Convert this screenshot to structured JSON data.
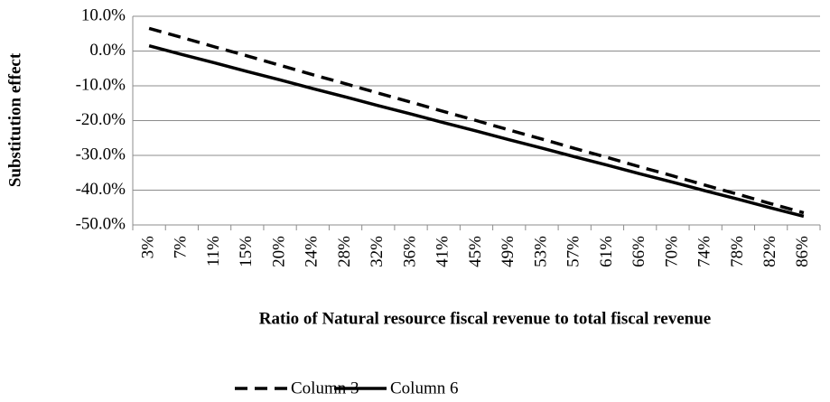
{
  "chart_data": {
    "type": "line",
    "xlabel": "Ratio of Natural resource fiscal revenue to total fiscal revenue",
    "ylabel": "Substitution effect",
    "categories": [
      "3%",
      "7%",
      "11%",
      "15%",
      "20%",
      "24%",
      "28%",
      "32%",
      "36%",
      "41%",
      "45%",
      "49%",
      "53%",
      "57%",
      "61%",
      "66%",
      "70%",
      "74%",
      "78%",
      "82%",
      "86%"
    ],
    "series": [
      {
        "name": "Column 3",
        "color": "#000000",
        "dash": true,
        "values": [
          6.5,
          3.9,
          1.2,
          -1.4,
          -4.1,
          -6.8,
          -9.4,
          -12.1,
          -14.7,
          -17.4,
          -20.0,
          -22.7,
          -25.3,
          -28.0,
          -30.6,
          -33.3,
          -35.9,
          -38.6,
          -41.2,
          -43.9,
          -46.5
        ]
      },
      {
        "name": "Column 6",
        "color": "#000000",
        "dash": false,
        "values": [
          1.5,
          -1.0,
          -3.4,
          -5.9,
          -8.3,
          -10.8,
          -13.2,
          -15.7,
          -18.1,
          -20.6,
          -23.0,
          -25.5,
          -27.9,
          -30.4,
          -32.8,
          -35.3,
          -37.7,
          -40.2,
          -42.6,
          -45.1,
          -47.5
        ]
      }
    ],
    "ylim": [
      -50,
      10
    ],
    "yticks": [
      {
        "value": 10,
        "label": "10.0%"
      },
      {
        "value": 0,
        "label": "0.0%"
      },
      {
        "value": -10,
        "label": "-10.0%"
      },
      {
        "value": -20,
        "label": "-20.0%"
      },
      {
        "value": -30,
        "label": "-30.0%"
      },
      {
        "value": -40,
        "label": "-40.0%"
      },
      {
        "value": -50,
        "label": "-50.0%"
      }
    ],
    "grid": true,
    "legend": "bottom"
  }
}
